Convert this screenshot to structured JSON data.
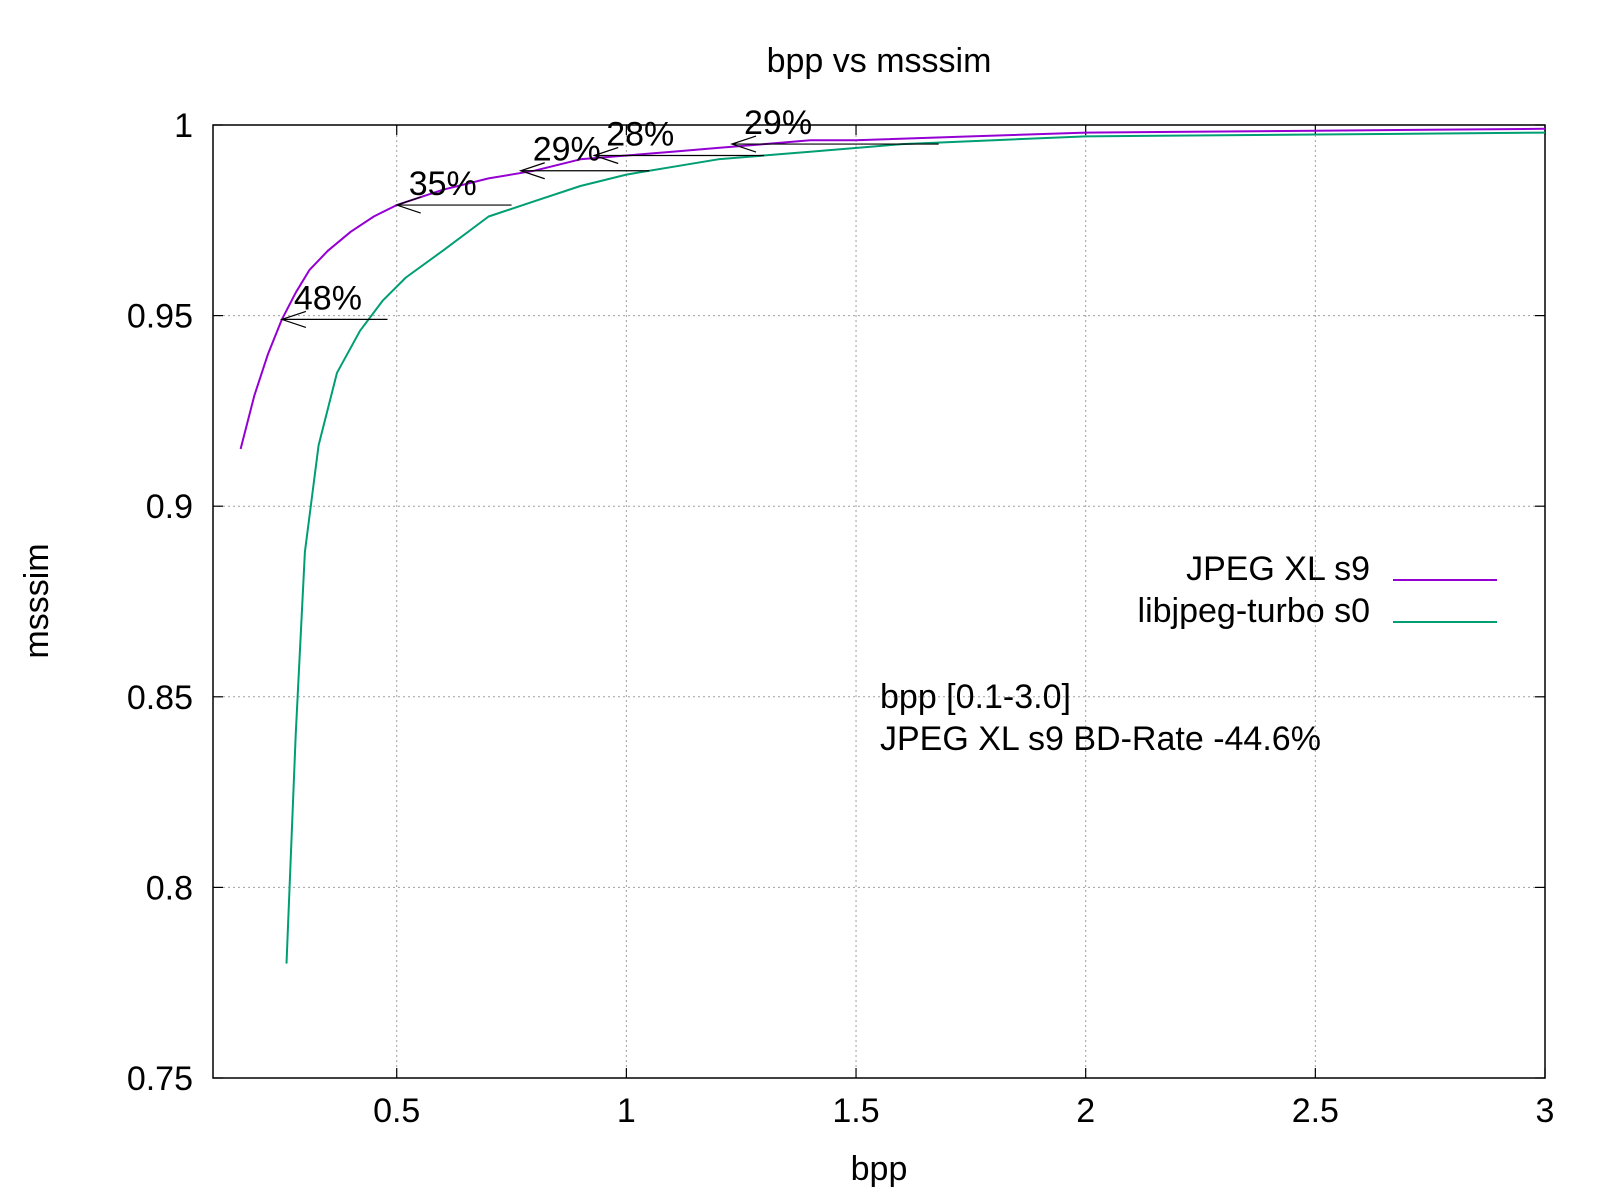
{
  "chart_data": {
    "type": "line",
    "title": "bpp vs msssim",
    "xlabel": "bpp",
    "ylabel": "msssim",
    "xlim": [
      0.1,
      3.0
    ],
    "ylim": [
      0.75,
      1.0
    ],
    "xticks": [
      "0.5",
      "1",
      "1.5",
      "2",
      "2.5",
      "3"
    ],
    "yticks": [
      "0.75",
      "0.8",
      "0.85",
      "0.9",
      "0.95",
      "1"
    ],
    "grid": true,
    "legend_position": "right",
    "series": [
      {
        "name": "JPEG XL s9",
        "color": "#9400d3",
        "x": [
          0.16,
          0.19,
          0.22,
          0.25,
          0.28,
          0.31,
          0.35,
          0.4,
          0.45,
          0.5,
          0.6,
          0.7,
          0.8,
          0.9,
          1.0,
          1.1,
          1.2,
          1.3,
          1.4,
          1.5,
          1.75,
          2.0,
          2.5,
          3.0
        ],
        "y": [
          0.915,
          0.929,
          0.94,
          0.949,
          0.956,
          0.962,
          0.967,
          0.972,
          0.976,
          0.979,
          0.983,
          0.986,
          0.988,
          0.991,
          0.992,
          0.993,
          0.994,
          0.995,
          0.996,
          0.996,
          0.997,
          0.998,
          0.9985,
          0.999
        ]
      },
      {
        "name": "libjpeg-turbo s0",
        "color": "#009e73",
        "x": [
          0.26,
          0.27,
          0.28,
          0.3,
          0.33,
          0.37,
          0.42,
          0.47,
          0.52,
          0.6,
          0.7,
          0.8,
          0.9,
          1.0,
          1.2,
          1.4,
          1.6,
          1.8,
          2.0,
          2.5,
          3.0
        ],
        "y": [
          0.78,
          0.81,
          0.84,
          0.888,
          0.916,
          0.935,
          0.946,
          0.954,
          0.96,
          0.967,
          0.976,
          0.98,
          0.984,
          0.987,
          0.991,
          0.993,
          0.995,
          0.996,
          0.997,
          0.9975,
          0.998
        ]
      }
    ],
    "annotations": [
      {
        "text": "48%",
        "from_x": 0.48,
        "to_x": 0.25,
        "y": 0.949
      },
      {
        "text": "35%",
        "from_x": 0.75,
        "to_x": 0.5,
        "y": 0.979
      },
      {
        "text": "29%",
        "from_x": 1.05,
        "to_x": 0.77,
        "y": 0.988
      },
      {
        "text": "28%",
        "from_x": 1.3,
        "to_x": 0.93,
        "y": 0.992
      },
      {
        "text": "29%",
        "from_x": 1.68,
        "to_x": 1.23,
        "y": 0.995
      }
    ],
    "notes": [
      {
        "text": "bpp [0.1-3.0]",
        "color": "#00e000"
      },
      {
        "text": "JPEG XL s9 BD-Rate -44.6%",
        "color": "#00e000"
      }
    ]
  }
}
